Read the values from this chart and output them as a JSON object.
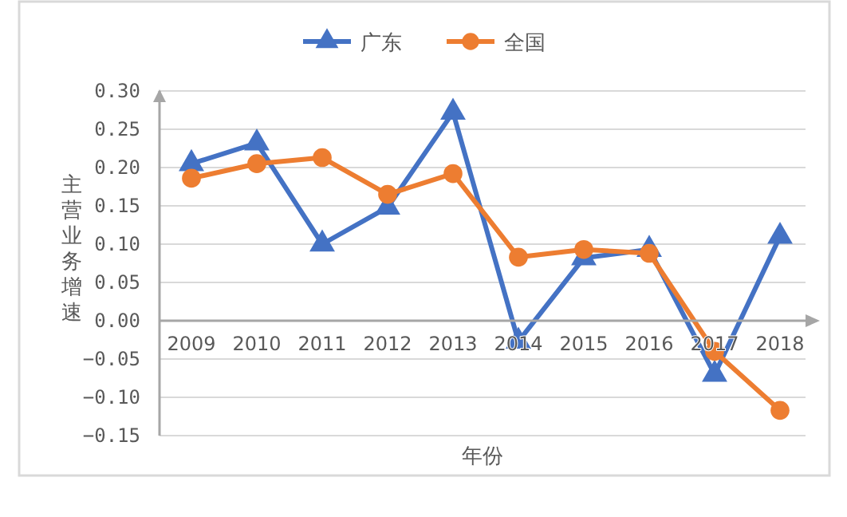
{
  "chart_data": {
    "type": "line",
    "xlabel": "年份",
    "ylabel": "主营业务增速",
    "categories": [
      "2009",
      "2010",
      "2011",
      "2012",
      "2013",
      "2014",
      "2015",
      "2016",
      "2017",
      "2018"
    ],
    "series": [
      {
        "name": "广东",
        "color": "#4472c4",
        "marker": "triangle",
        "values": [
          0.205,
          0.232,
          0.1,
          0.148,
          0.272,
          -0.027,
          0.082,
          0.093,
          -0.07,
          0.11
        ]
      },
      {
        "name": "全国",
        "color": "#ed7d31",
        "marker": "circle",
        "values": [
          0.186,
          0.205,
          0.213,
          0.165,
          0.192,
          0.083,
          0.093,
          0.088,
          -0.04,
          -0.117
        ]
      }
    ],
    "ylim": [
      -0.15,
      0.3
    ],
    "yticks": [
      {
        "value": -0.15,
        "label": "−0.15"
      },
      {
        "value": -0.1,
        "label": "−0.10"
      },
      {
        "value": -0.05,
        "label": "−0.05"
      },
      {
        "value": 0,
        "label": "0.00"
      },
      {
        "value": 0.05,
        "label": "0.05"
      },
      {
        "value": 0.1,
        "label": "0.10"
      },
      {
        "value": 0.15,
        "label": "0.15"
      },
      {
        "value": 0.2,
        "label": "0.20"
      },
      {
        "value": 0.25,
        "label": "0.25"
      },
      {
        "value": 0.3,
        "label": "0.30"
      }
    ],
    "grid": "y",
    "legend": "top",
    "line_style": "solid"
  }
}
